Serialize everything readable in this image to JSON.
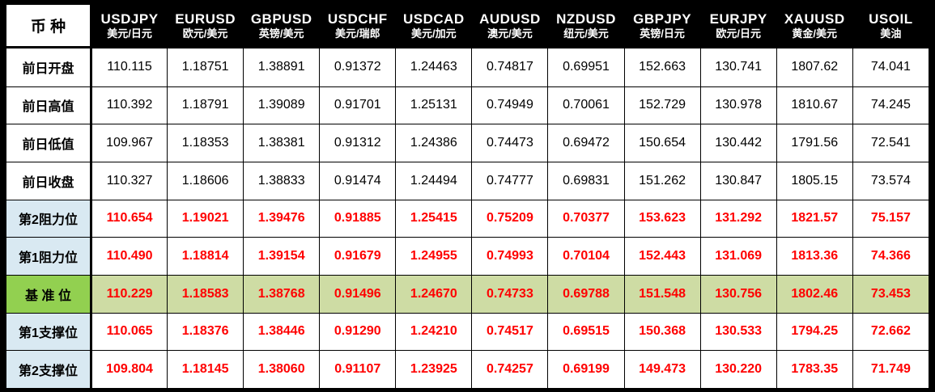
{
  "table": {
    "corner_label": "币 种",
    "columns": [
      {
        "symbol": "USDJPY",
        "name_cn": "美元/日元"
      },
      {
        "symbol": "EURUSD",
        "name_cn": "欧元/美元"
      },
      {
        "symbol": "GBPUSD",
        "name_cn": "英镑/美元"
      },
      {
        "symbol": "USDCHF",
        "name_cn": "美元/瑞郎"
      },
      {
        "symbol": "USDCAD",
        "name_cn": "美元/加元"
      },
      {
        "symbol": "AUDUSD",
        "name_cn": "澳元/美元"
      },
      {
        "symbol": "NZDUSD",
        "name_cn": "纽元/美元"
      },
      {
        "symbol": "GBPJPY",
        "name_cn": "英镑/日元"
      },
      {
        "symbol": "EURJPY",
        "name_cn": "欧元/日元"
      },
      {
        "symbol": "XAUUSD",
        "name_cn": "黄金/美元"
      },
      {
        "symbol": "USOIL",
        "name_cn": "美油"
      }
    ],
    "rows": [
      {
        "label": "前日开盘",
        "type": "ohlc",
        "values": [
          "110.115",
          "1.18751",
          "1.38891",
          "0.91372",
          "1.24463",
          "0.74817",
          "0.69951",
          "152.663",
          "130.741",
          "1807.62",
          "74.041"
        ]
      },
      {
        "label": "前日高值",
        "type": "ohlc",
        "values": [
          "110.392",
          "1.18791",
          "1.39089",
          "0.91701",
          "1.25131",
          "0.74949",
          "0.70061",
          "152.729",
          "130.978",
          "1810.67",
          "74.245"
        ]
      },
      {
        "label": "前日低值",
        "type": "ohlc",
        "values": [
          "109.967",
          "1.18353",
          "1.38381",
          "0.91312",
          "1.24386",
          "0.74473",
          "0.69472",
          "150.654",
          "130.442",
          "1791.56",
          "72.541"
        ]
      },
      {
        "label": "前日收盘",
        "type": "ohlc",
        "values": [
          "110.327",
          "1.18606",
          "1.38833",
          "0.91474",
          "1.24494",
          "0.74777",
          "0.69831",
          "151.262",
          "130.847",
          "1805.15",
          "73.574"
        ]
      },
      {
        "label": "第2阻力位",
        "type": "resistance",
        "values": [
          "110.654",
          "1.19021",
          "1.39476",
          "0.91885",
          "1.25415",
          "0.75209",
          "0.70377",
          "153.623",
          "131.292",
          "1821.57",
          "75.157"
        ]
      },
      {
        "label": "第1阻力位",
        "type": "resistance",
        "values": [
          "110.490",
          "1.18814",
          "1.39154",
          "0.91679",
          "1.24955",
          "0.74993",
          "0.70104",
          "152.443",
          "131.069",
          "1813.36",
          "74.366"
        ]
      },
      {
        "label": "基 准 位",
        "type": "pivot",
        "values": [
          "110.229",
          "1.18583",
          "1.38768",
          "0.91496",
          "1.24670",
          "0.74733",
          "0.69788",
          "151.548",
          "130.756",
          "1802.46",
          "73.453"
        ]
      },
      {
        "label": "第1支撑位",
        "type": "support",
        "values": [
          "110.065",
          "1.18376",
          "1.38446",
          "0.91290",
          "1.24210",
          "0.74517",
          "0.69515",
          "150.368",
          "130.533",
          "1794.25",
          "72.662"
        ]
      },
      {
        "label": "第2支撑位",
        "type": "support",
        "values": [
          "109.804",
          "1.18145",
          "1.38060",
          "0.91107",
          "1.23925",
          "0.74257",
          "0.69199",
          "149.473",
          "130.220",
          "1783.35",
          "71.749"
        ]
      }
    ],
    "colors": {
      "header_bg": "#000000",
      "header_text": "#FFFFFF",
      "section_label_blue_bg": "#D9E9F2",
      "pivot_label_green_bg": "#92D050",
      "pivot_row_green_bg": "#CEDCA4",
      "pivot_value_red": "#FF0000",
      "border": "#000000"
    }
  },
  "chart_data": {
    "type": "table",
    "title": "外汇/商品 枢轴点位表 (Currency pivot levels table)",
    "columns": [
      "币种",
      "USDJPY 美元/日元",
      "EURUSD 欧元/美元",
      "GBPUSD 英镑/美元",
      "USDCHF 美元/瑞郎",
      "USDCAD 美元/加元",
      "AUDUSD 澳元/美元",
      "NZDUSD 纽元/美元",
      "GBPJPY 英镑/日元",
      "EURJPY 欧元/日元",
      "XAUUSD 黄金/美元",
      "USOIL 美油"
    ],
    "rows": [
      [
        "前日开盘",
        110.115,
        1.18751,
        1.38891,
        0.91372,
        1.24463,
        0.74817,
        0.69951,
        152.663,
        130.741,
        1807.62,
        74.041
      ],
      [
        "前日高值",
        110.392,
        1.18791,
        1.39089,
        0.91701,
        1.25131,
        0.74949,
        0.70061,
        152.729,
        130.978,
        1810.67,
        74.245
      ],
      [
        "前日低值",
        109.967,
        1.18353,
        1.38381,
        0.91312,
        1.24386,
        0.74473,
        0.69472,
        150.654,
        130.442,
        1791.56,
        72.541
      ],
      [
        "前日收盘",
        110.327,
        1.18606,
        1.38833,
        0.91474,
        1.24494,
        0.74777,
        0.69831,
        151.262,
        130.847,
        1805.15,
        73.574
      ],
      [
        "第2阻力位",
        110.654,
        1.19021,
        1.39476,
        0.91885,
        1.25415,
        0.75209,
        0.70377,
        153.623,
        131.292,
        1821.57,
        75.157
      ],
      [
        "第1阻力位",
        110.49,
        1.18814,
        1.39154,
        0.91679,
        1.24955,
        0.74993,
        0.70104,
        152.443,
        131.069,
        1813.36,
        74.366
      ],
      [
        "基准位",
        110.229,
        1.18583,
        1.38768,
        0.91496,
        1.2467,
        0.74733,
        0.69788,
        151.548,
        130.756,
        1802.46,
        73.453
      ],
      [
        "第1支撑位",
        110.065,
        1.18376,
        1.38446,
        0.9129,
        1.2421,
        0.74517,
        0.69515,
        150.368,
        130.533,
        1794.25,
        72.662
      ],
      [
        "第2支撑位",
        109.804,
        1.18145,
        1.3806,
        0.91107,
        1.23925,
        0.74257,
        0.69199,
        149.473,
        130.22,
        1783.35,
        71.749
      ]
    ]
  }
}
